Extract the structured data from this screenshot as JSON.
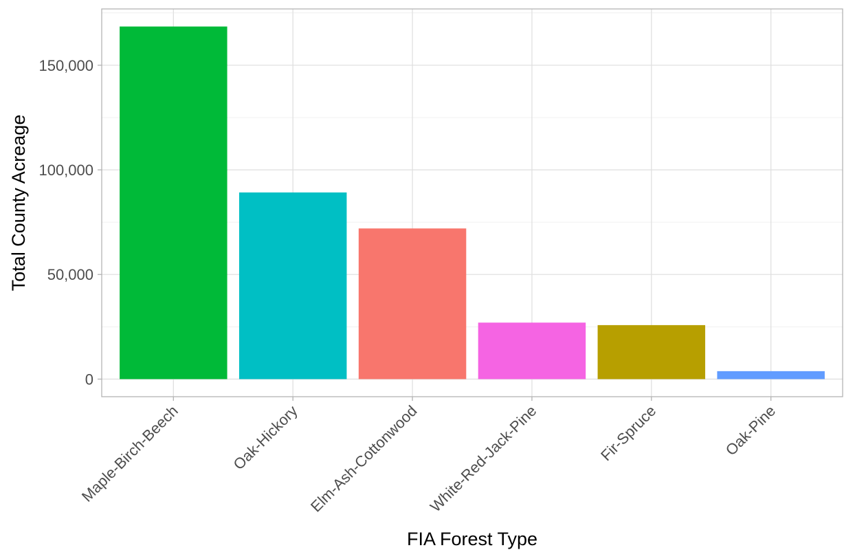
{
  "chart_data": {
    "type": "bar",
    "xlabel": "FIA Forest Type",
    "ylabel": "Total County Acreage",
    "categories": [
      "Maple-Birch-Beech",
      "Oak-Hickory",
      "Elm-Ash-Cottonwood",
      "White-Red-Jack-Pine",
      "Fir-Spruce",
      "Oak-Pine"
    ],
    "values": [
      168500,
      89200,
      72000,
      27000,
      25800,
      3800
    ],
    "colors": [
      "#00BA38",
      "#00BFC4",
      "#F8766D",
      "#F564E3",
      "#B79F00",
      "#619CFF"
    ],
    "ylim": [
      -8400,
      176900
    ],
    "yticks": [
      0,
      50000,
      100000,
      150000
    ],
    "ytick_labels": [
      "0",
      "50,000",
      "100,000",
      "150,000"
    ],
    "grid": true,
    "legend": "none"
  }
}
